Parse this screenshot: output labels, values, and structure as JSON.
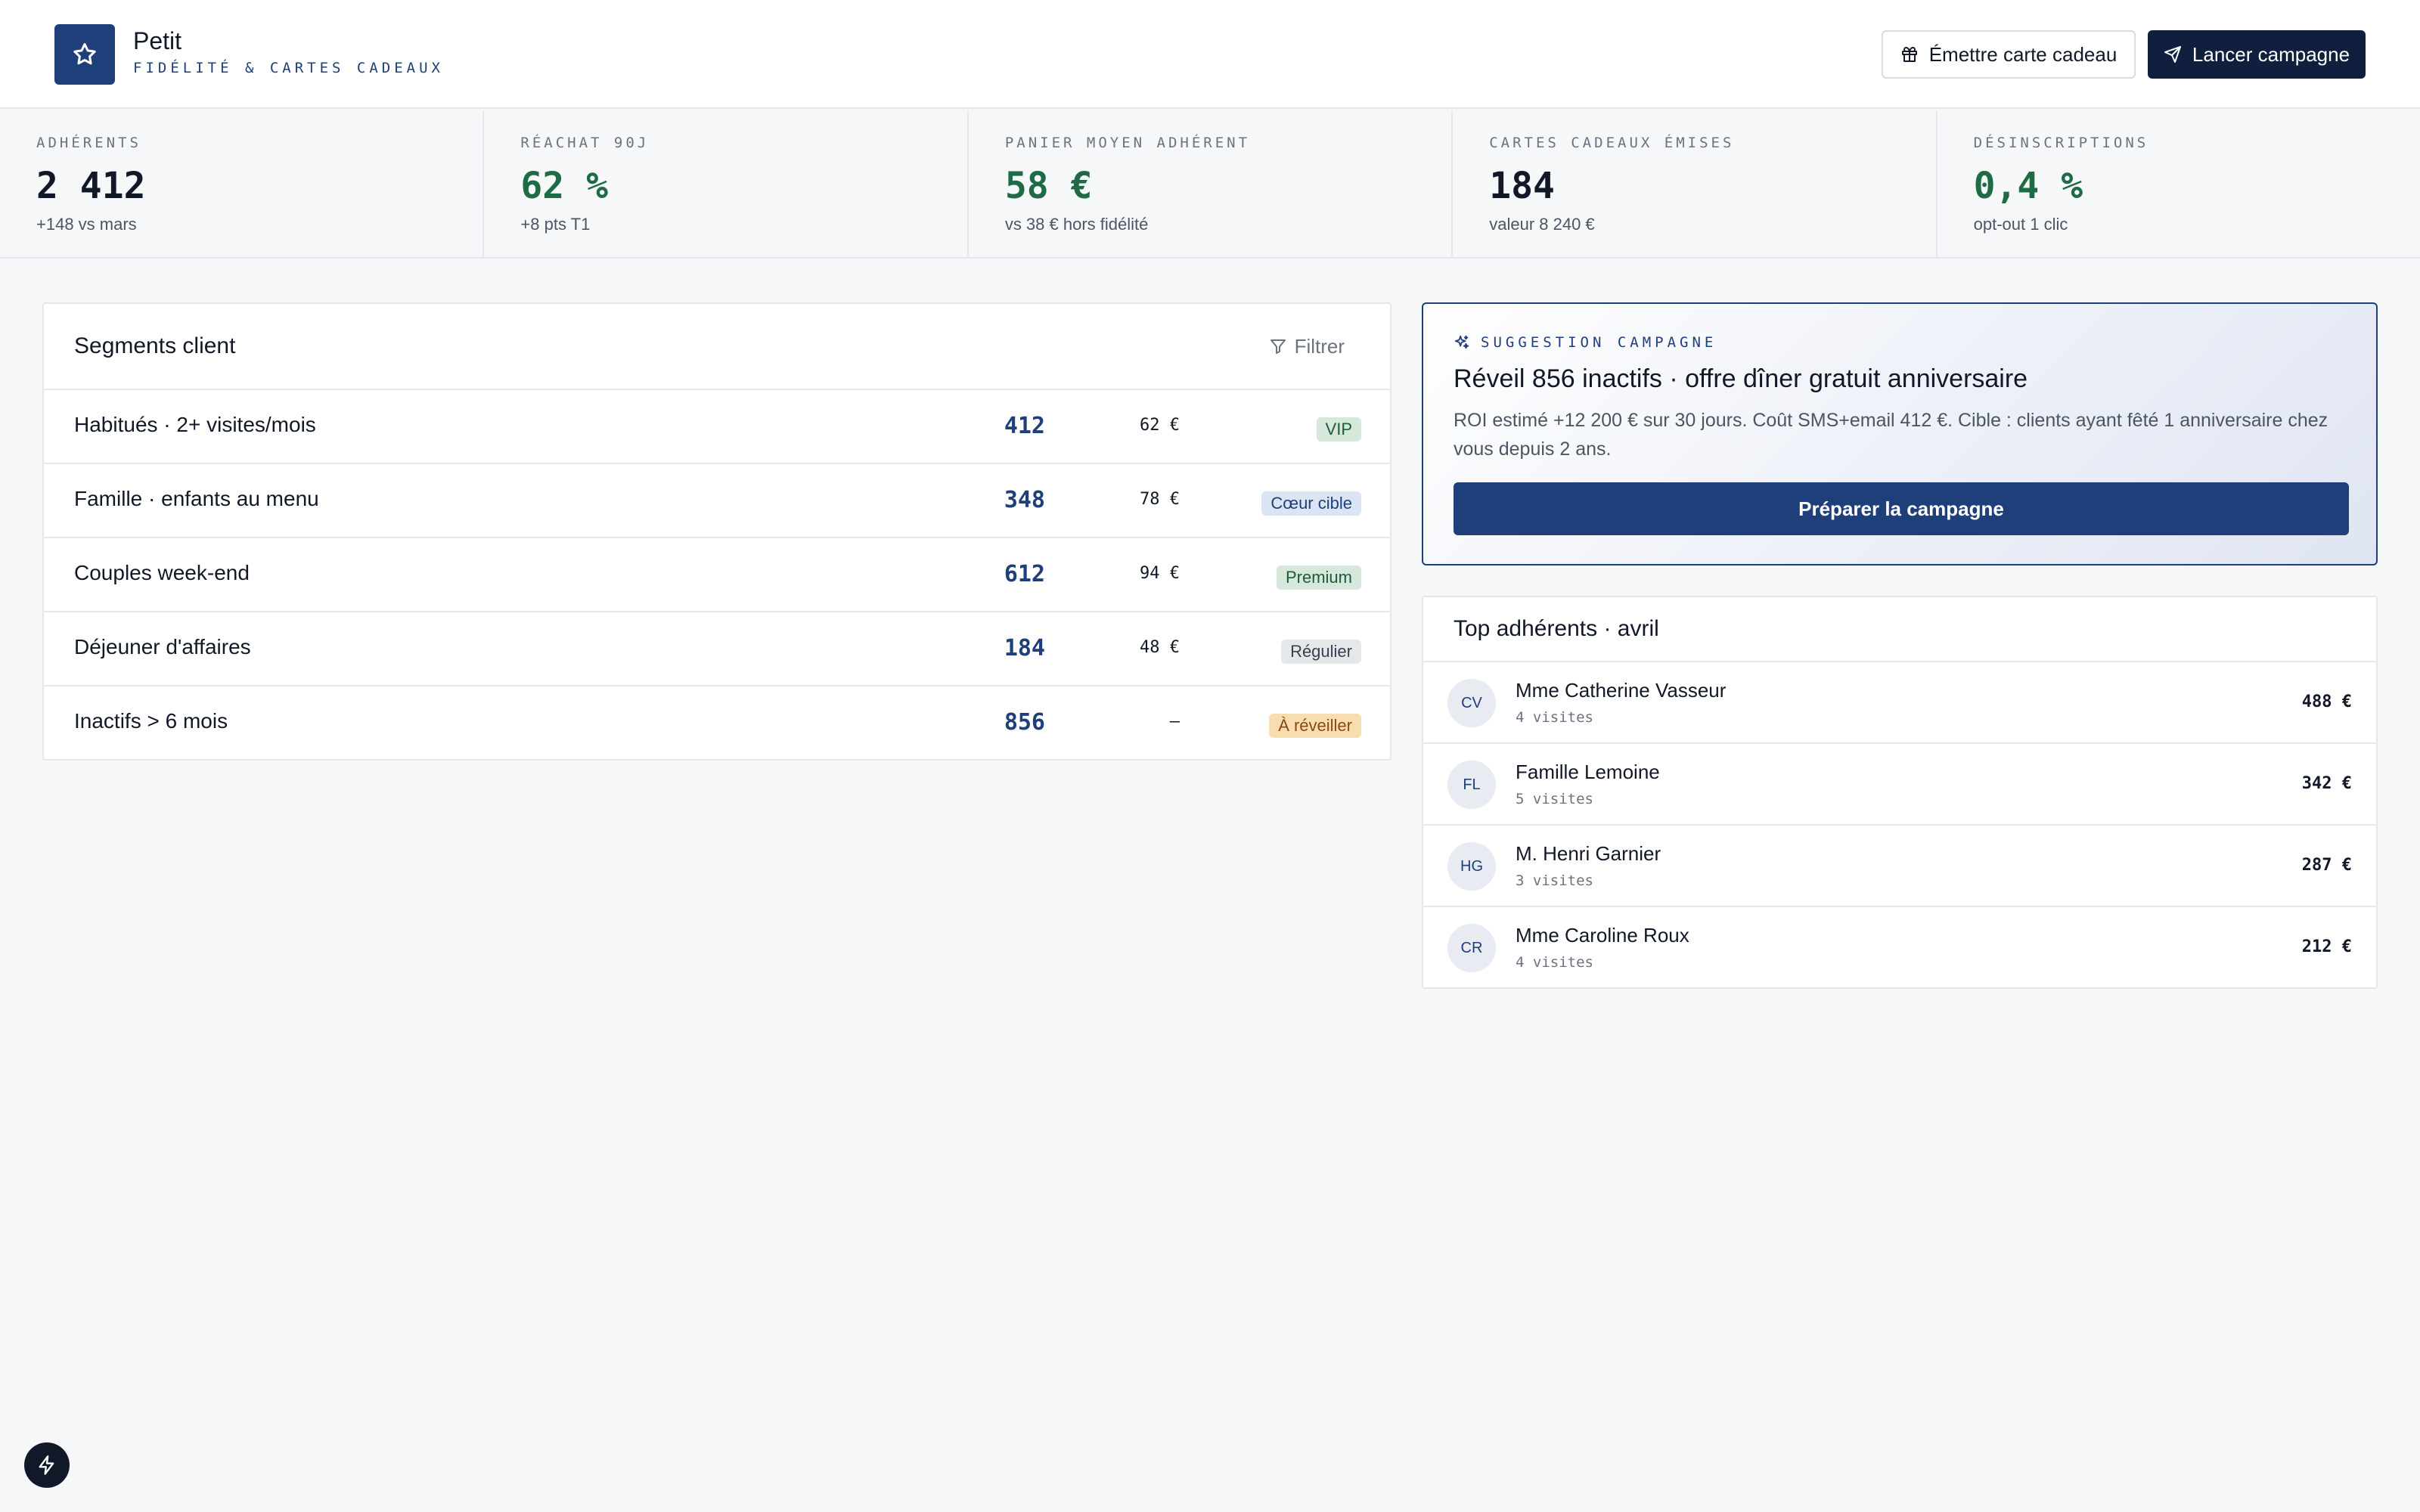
{
  "brand": {
    "name": "Petit",
    "subtitle": "FIDÉLITÉ & CARTES CADEAUX"
  },
  "actions": {
    "gift_card_label": "Émettre carte cadeau",
    "launch_label": "Lancer campagne"
  },
  "kpis": [
    {
      "label": "ADHÉRENTS",
      "value": "2 412",
      "note": "+148 vs mars",
      "tone": "dark"
    },
    {
      "label": "RÉACHAT 90J",
      "value": "62 %",
      "note": "+8 pts T1",
      "tone": "green"
    },
    {
      "label": "PANIER MOYEN ADHÉRENT",
      "value": "58 €",
      "note": "vs 38 € hors fidélité",
      "tone": "green"
    },
    {
      "label": "CARTES CADEAUX ÉMISES",
      "value": "184",
      "note": "valeur 8 240 €",
      "tone": "dark"
    },
    {
      "label": "DÉSINSCRIPTIONS",
      "value": "0,4 %",
      "note": "opt-out 1 clic",
      "tone": "green"
    }
  ],
  "segments": {
    "title": "Segments client",
    "filter_label": "Filtrer",
    "rows": [
      {
        "name": "Habitués · 2+ visites/mois",
        "count": "412",
        "avg": "62 €",
        "badge": "VIP",
        "badge_bg": "#d6e7dc",
        "badge_fg": "#1e5b3a"
      },
      {
        "name": "Famille · enfants au menu",
        "count": "348",
        "avg": "78 €",
        "badge": "Cœur cible",
        "badge_bg": "#dbe4f3",
        "badge_fg": "#1f3f7a"
      },
      {
        "name": "Couples week-end",
        "count": "612",
        "avg": "94 €",
        "badge": "Premium",
        "badge_bg": "#d6e7dc",
        "badge_fg": "#1e5b3a"
      },
      {
        "name": "Déjeuner d'affaires",
        "count": "184",
        "avg": "48 €",
        "badge": "Régulier",
        "badge_bg": "#e5e7eb",
        "badge_fg": "#374151"
      },
      {
        "name": "Inactifs > 6 mois",
        "count": "856",
        "avg": "–",
        "badge": "À réveiller",
        "badge_bg": "#f7ddb0",
        "badge_fg": "#8a4a10"
      }
    ]
  },
  "suggestion": {
    "label": "SUGGESTION CAMPAGNE",
    "title": "Réveil 856 inactifs · offre dîner gratuit anniversaire",
    "text": "ROI estimé +12 200 € sur 30 jours. Coût SMS+email 412 €. Cible : clients ayant fêté 1 anniversaire chez vous depuis 2 ans.",
    "button_label": "Préparer la campagne"
  },
  "top_members": {
    "title": "Top adhérents · avril",
    "items": [
      {
        "initials": "CV",
        "name": "Mme Catherine Vasseur",
        "visits": "4 visites",
        "amount": "488 €"
      },
      {
        "initials": "FL",
        "name": "Famille Lemoine",
        "visits": "5 visites",
        "amount": "342 €"
      },
      {
        "initials": "HG",
        "name": "M. Henri Garnier",
        "visits": "3 visites",
        "amount": "287 €"
      },
      {
        "initials": "CR",
        "name": "Mme Caroline Roux",
        "visits": "4 visites",
        "amount": "212 €"
      }
    ]
  },
  "icons": {
    "logo": "star-icon",
    "gift": "gift-icon",
    "launch": "send-icon",
    "filter": "filter-icon",
    "suggestion": "sparkles-icon",
    "corner": "bolt-icon"
  },
  "colors": {
    "brand": "#1f3f7a",
    "dark_button": "#0f1f3d",
    "positive": "#1e6b46"
  }
}
